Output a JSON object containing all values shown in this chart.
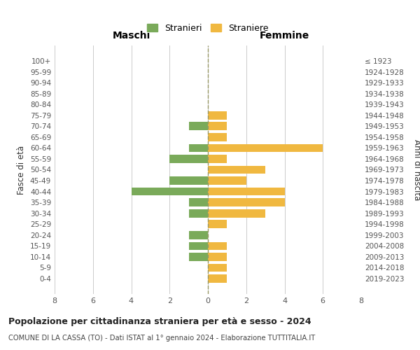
{
  "age_groups": [
    "100+",
    "95-99",
    "90-94",
    "85-89",
    "80-84",
    "75-79",
    "70-74",
    "65-69",
    "60-64",
    "55-59",
    "50-54",
    "45-49",
    "40-44",
    "35-39",
    "30-34",
    "25-29",
    "20-24",
    "15-19",
    "10-14",
    "5-9",
    "0-4"
  ],
  "birth_years": [
    "≤ 1923",
    "1924-1928",
    "1929-1933",
    "1934-1938",
    "1939-1943",
    "1944-1948",
    "1949-1953",
    "1954-1958",
    "1959-1963",
    "1964-1968",
    "1969-1973",
    "1974-1978",
    "1979-1983",
    "1984-1988",
    "1989-1993",
    "1994-1998",
    "1999-2003",
    "2004-2008",
    "2009-2013",
    "2014-2018",
    "2019-2023"
  ],
  "males": [
    0,
    0,
    0,
    0,
    0,
    0,
    1,
    0,
    1,
    2,
    0,
    2,
    4,
    1,
    1,
    0,
    1,
    1,
    1,
    0,
    0
  ],
  "females": [
    0,
    0,
    0,
    0,
    0,
    1,
    1,
    1,
    6,
    1,
    3,
    2,
    4,
    4,
    3,
    1,
    0,
    1,
    1,
    1,
    1
  ],
  "male_color": "#7aaa5a",
  "female_color": "#f0b840",
  "xlim": 8,
  "title": "Popolazione per cittadinanza straniera per età e sesso - 2024",
  "subtitle": "COMUNE DI LA CASSA (TO) - Dati ISTAT al 1° gennaio 2024 - Elaborazione TUTTITALIA.IT",
  "legend_male": "Stranieri",
  "legend_female": "Straniere",
  "left_label": "Maschi",
  "right_label": "Femmine",
  "y_label_left": "Fasce di età",
  "y_label_right": "Anni di nascita",
  "background_color": "#ffffff",
  "grid_color": "#cccccc",
  "center_line_color": "#999966",
  "bar_height": 0.75
}
